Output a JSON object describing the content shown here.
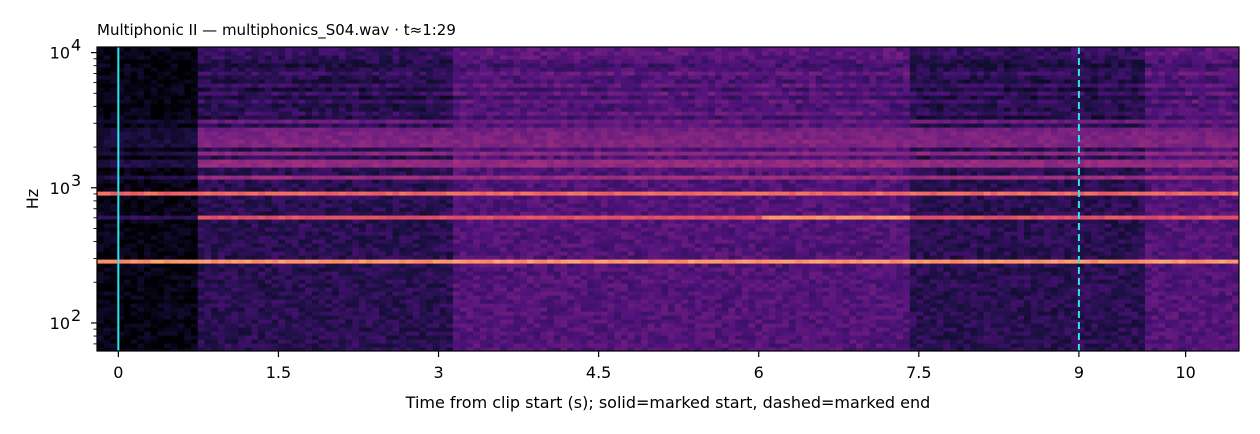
{
  "chart_data": {
    "type": "heatmap",
    "title": "Multiphonic II  —  multiphonics_S04.wav · t≈1:29",
    "xlabel": "Time from clip start (s); solid=marked start, dashed=marked end",
    "ylabel": "Hz",
    "xlim": [
      -0.2,
      10.5
    ],
    "ylim": [
      62,
      11000
    ],
    "yscale": "log",
    "x_ticks": [
      0,
      1.5,
      3,
      4.5,
      6,
      7.5,
      9,
      10
    ],
    "x_tick_labels": [
      "0",
      "1.5",
      "3",
      "4.5",
      "6",
      "7.5",
      "9",
      "10"
    ],
    "y_ticks": [
      {
        "value": 100,
        "base": "10",
        "exp": "2"
      },
      {
        "value": 1000,
        "base": "10",
        "exp": "3"
      },
      {
        "value": 10000,
        "base": "10",
        "exp": "4"
      }
    ],
    "colormap": "magma",
    "markers": [
      {
        "name": "marked start",
        "time": 0,
        "style": "solid",
        "color": "#2ee6e6"
      },
      {
        "name": "marked end",
        "time": 9,
        "style": "dashed",
        "color": "#2ee6e6"
      }
    ],
    "partials_hz": [
      295,
      600,
      930,
      1230,
      1530,
      1850,
      2150,
      2450,
      2750,
      3100
    ],
    "noise_segments": [
      {
        "from": -0.2,
        "to": 0.75,
        "level": "quiet"
      },
      {
        "from": 0.75,
        "to": 3.15,
        "level": "low"
      },
      {
        "from": 3.15,
        "to": 7.4,
        "level": "medium"
      },
      {
        "from": 7.4,
        "to": 9.6,
        "level": "low"
      },
      {
        "from": 9.6,
        "to": 10.5,
        "level": "medium"
      }
    ]
  }
}
